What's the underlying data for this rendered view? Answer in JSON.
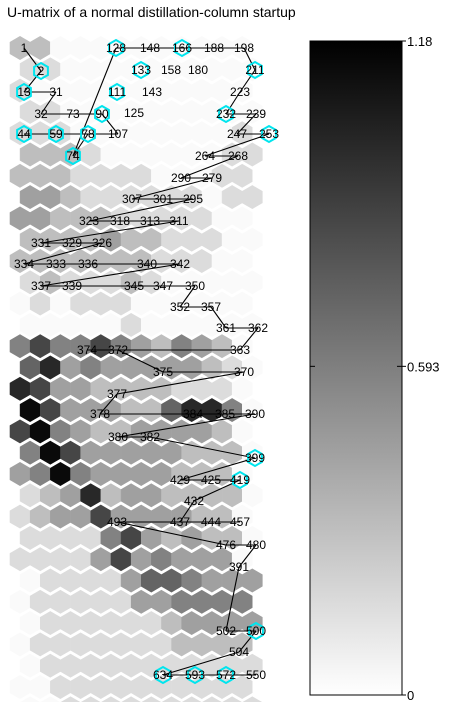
{
  "title": "U-matrix of a normal distillation-column startup",
  "chart_data": {
    "type": "heatmap",
    "title": "U-matrix of a normal distillation-column startup",
    "grid": {
      "cols": 12,
      "rows": 32,
      "cell_shape": "hexagon"
    },
    "colorbar": {
      "min": 0,
      "max": 1.18,
      "ticks": [
        "1.18",
        "0.593",
        "0"
      ],
      "colormap": "gray (white = low, black = high)"
    },
    "grid_intensity_rows": [
      "220000000000",
      "110000000000",
      "100000000000",
      "110000000000",
      "111000000001",
      "222100000011",
      "222111100011",
      "332111111011",
      "332221111100",
      "222232211100",
      "222222211100",
      "121112100000",
      "010111000000",
      "000001000000",
      "464464324320",
      "573433333210",
      "763322221110",
      "863332257740",
      "684322333320",
      "486333332220",
      "348433332220",
      "123723322220",
      "123363333220",
      "111146323220",
      "111136343330",
      "011113554333",
      "011111334444",
      "011111123333",
      "011111112222",
      "011111111111",
      "001111111111",
      "001111111111"
    ],
    "node_labels": [
      {
        "text": "1",
        "highlight": false
      },
      {
        "text": "2",
        "highlight": true
      },
      {
        "text": "13",
        "highlight": true
      },
      {
        "text": "31",
        "highlight": false
      },
      {
        "text": "32",
        "highlight": false
      },
      {
        "text": "73",
        "highlight": false
      },
      {
        "text": "90",
        "highlight": true
      },
      {
        "text": "44",
        "highlight": true
      },
      {
        "text": "59",
        "highlight": true
      },
      {
        "text": "78",
        "highlight": true
      },
      {
        "text": "107",
        "highlight": false
      },
      {
        "text": "74",
        "highlight": true
      },
      {
        "text": "128",
        "highlight": true
      },
      {
        "text": "148",
        "highlight": false
      },
      {
        "text": "166",
        "highlight": true
      },
      {
        "text": "188",
        "highlight": false
      },
      {
        "text": "198",
        "highlight": false
      },
      {
        "text": "133",
        "highlight": true
      },
      {
        "text": "158",
        "highlight": false
      },
      {
        "text": "180",
        "highlight": false
      },
      {
        "text": "211",
        "highlight": true
      },
      {
        "text": "111",
        "highlight": true
      },
      {
        "text": "143",
        "highlight": false
      },
      {
        "text": "125",
        "highlight": false
      },
      {
        "text": "223",
        "highlight": false
      },
      {
        "text": "232",
        "highlight": true
      },
      {
        "text": "239",
        "highlight": false
      },
      {
        "text": "247",
        "highlight": false
      },
      {
        "text": "253",
        "highlight": true
      },
      {
        "text": "264",
        "highlight": false
      },
      {
        "text": "268",
        "highlight": false
      },
      {
        "text": "290",
        "highlight": false
      },
      {
        "text": "279",
        "highlight": false
      },
      {
        "text": "307",
        "highlight": false
      },
      {
        "text": "301",
        "highlight": false
      },
      {
        "text": "295",
        "highlight": false
      },
      {
        "text": "323",
        "highlight": false
      },
      {
        "text": "318",
        "highlight": false
      },
      {
        "text": "313",
        "highlight": false
      },
      {
        "text": "311",
        "highlight": false
      },
      {
        "text": "331",
        "highlight": false
      },
      {
        "text": "329",
        "highlight": false
      },
      {
        "text": "326",
        "highlight": false
      },
      {
        "text": "334",
        "highlight": false
      },
      {
        "text": "333",
        "highlight": false
      },
      {
        "text": "336",
        "highlight": false
      },
      {
        "text": "340",
        "highlight": false
      },
      {
        "text": "342",
        "highlight": false
      },
      {
        "text": "337",
        "highlight": false
      },
      {
        "text": "339",
        "highlight": false
      },
      {
        "text": "345",
        "highlight": false
      },
      {
        "text": "347",
        "highlight": false
      },
      {
        "text": "350",
        "highlight": false
      },
      {
        "text": "352",
        "highlight": false
      },
      {
        "text": "357",
        "highlight": false
      },
      {
        "text": "361",
        "highlight": false
      },
      {
        "text": "362",
        "highlight": false
      },
      {
        "text": "363",
        "highlight": false
      },
      {
        "text": "374",
        "highlight": false
      },
      {
        "text": "372",
        "highlight": false
      },
      {
        "text": "375",
        "highlight": false
      },
      {
        "text": "370",
        "highlight": false
      },
      {
        "text": "377",
        "highlight": false
      },
      {
        "text": "378",
        "highlight": false
      },
      {
        "text": "384",
        "highlight": false
      },
      {
        "text": "385",
        "highlight": false
      },
      {
        "text": "390",
        "highlight": false
      },
      {
        "text": "380",
        "highlight": false
      },
      {
        "text": "382",
        "highlight": false
      },
      {
        "text": "399",
        "highlight": true
      },
      {
        "text": "429",
        "highlight": false
      },
      {
        "text": "425",
        "highlight": false
      },
      {
        "text": "419",
        "highlight": true
      },
      {
        "text": "432",
        "highlight": false
      },
      {
        "text": "437",
        "highlight": false
      },
      {
        "text": "444",
        "highlight": false
      },
      {
        "text": "457",
        "highlight": false
      },
      {
        "text": "493",
        "highlight": false
      },
      {
        "text": "476",
        "highlight": false
      },
      {
        "text": "480",
        "highlight": false
      },
      {
        "text": "391",
        "highlight": false
      },
      {
        "text": "502",
        "highlight": false
      },
      {
        "text": "500",
        "highlight": true
      },
      {
        "text": "504",
        "highlight": false
      },
      {
        "text": "634",
        "highlight": true
      },
      {
        "text": "593",
        "highlight": true
      },
      {
        "text": "572",
        "highlight": true
      },
      {
        "text": "550",
        "highlight": false
      }
    ],
    "trajectory": [
      "1",
      "2",
      "13",
      "31",
      "32",
      "73",
      "90",
      "107",
      "44",
      "59",
      "78",
      "74",
      "128",
      "148",
      "166",
      "188",
      "198",
      "211",
      "223",
      "232",
      "239",
      "247",
      "253",
      "264",
      "268",
      "290",
      "279",
      "307",
      "301",
      "295",
      "323",
      "318",
      "313",
      "311",
      "331",
      "329",
      "326",
      "334",
      "333",
      "336",
      "340",
      "342",
      "337",
      "339",
      "345",
      "347",
      "350",
      "352",
      "357",
      "361",
      "362",
      "363",
      "374",
      "372",
      "375",
      "370",
      "377",
      "378",
      "384",
      "385",
      "390",
      "380",
      "382",
      "399",
      "429",
      "425",
      "419",
      "432",
      "437",
      "444",
      "457",
      "493",
      "476",
      "480",
      "391",
      "502",
      "500",
      "504",
      "634",
      "593",
      "572",
      "550"
    ]
  }
}
